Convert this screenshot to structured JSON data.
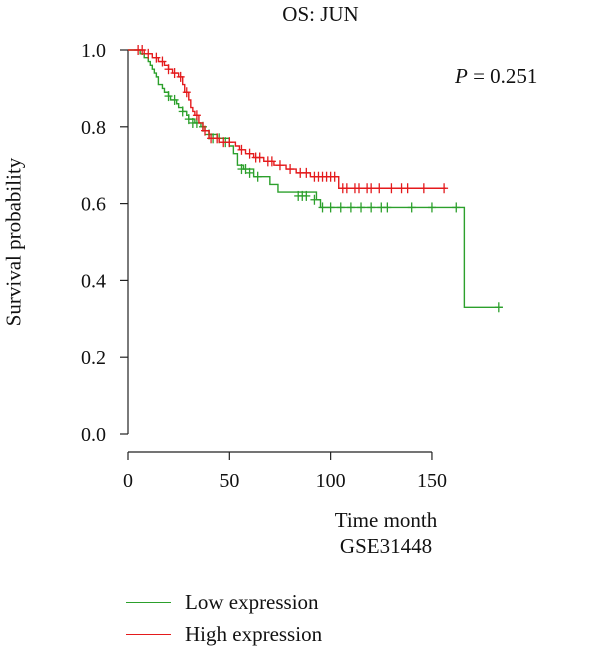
{
  "chart_data": {
    "type": "line",
    "title": "OS: JUN",
    "xlabel": "Time month",
    "subtitle": "GSE31448",
    "ylabel": "Survival probability",
    "annotation": {
      "label": "P",
      "text": " = 0.251"
    },
    "xlim": [
      0,
      190
    ],
    "ylim": [
      0,
      1.0
    ],
    "xticks": [
      0,
      50,
      100,
      150
    ],
    "yticks": [
      0.0,
      0.2,
      0.4,
      0.6,
      0.8,
      1.0
    ],
    "ytick_labels": [
      "0.0",
      "0.2",
      "0.4",
      "0.6",
      "0.8",
      "1.0"
    ],
    "legend_position": "bottom-left",
    "series": [
      {
        "name": "Low expression",
        "color": "#2ca02c",
        "steps": [
          [
            0,
            1.0
          ],
          [
            6,
            0.99
          ],
          [
            8,
            0.98
          ],
          [
            10,
            0.97
          ],
          [
            11,
            0.96
          ],
          [
            12,
            0.95
          ],
          [
            13,
            0.94
          ],
          [
            14,
            0.93
          ],
          [
            15,
            0.91
          ],
          [
            17,
            0.9
          ],
          [
            18,
            0.89
          ],
          [
            20,
            0.88
          ],
          [
            21,
            0.87
          ],
          [
            24,
            0.86
          ],
          [
            25,
            0.85
          ],
          [
            27,
            0.84
          ],
          [
            29,
            0.83
          ],
          [
            30,
            0.82
          ],
          [
            33,
            0.81
          ],
          [
            36,
            0.8
          ],
          [
            38,
            0.79
          ],
          [
            40,
            0.78
          ],
          [
            44,
            0.77
          ],
          [
            50,
            0.75
          ],
          [
            52,
            0.73
          ],
          [
            54,
            0.7
          ],
          [
            57,
            0.69
          ],
          [
            62,
            0.67
          ],
          [
            70,
            0.65
          ],
          [
            74,
            0.63
          ],
          [
            93,
            0.61
          ],
          [
            95,
            0.59
          ],
          [
            166,
            0.33
          ],
          [
            185,
            0.33
          ]
        ],
        "censored": [
          [
            20,
            0.88
          ],
          [
            23,
            0.87
          ],
          [
            27,
            0.84
          ],
          [
            30,
            0.82
          ],
          [
            32,
            0.81
          ],
          [
            34,
            0.81
          ],
          [
            37,
            0.8
          ],
          [
            40,
            0.78
          ],
          [
            42,
            0.77
          ],
          [
            45,
            0.77
          ],
          [
            48,
            0.76
          ],
          [
            56,
            0.69
          ],
          [
            58,
            0.69
          ],
          [
            60,
            0.68
          ],
          [
            64,
            0.67
          ],
          [
            84,
            0.62
          ],
          [
            86,
            0.62
          ],
          [
            88,
            0.62
          ],
          [
            92,
            0.61
          ],
          [
            96,
            0.59
          ],
          [
            100,
            0.59
          ],
          [
            105,
            0.59
          ],
          [
            110,
            0.59
          ],
          [
            115,
            0.59
          ],
          [
            120,
            0.59
          ],
          [
            125,
            0.59
          ],
          [
            128,
            0.59
          ],
          [
            140,
            0.59
          ],
          [
            150,
            0.59
          ],
          [
            162,
            0.59
          ],
          [
            183,
            0.33
          ]
        ]
      },
      {
        "name": "High expression",
        "color": "#e41a1c",
        "steps": [
          [
            0,
            1.0
          ],
          [
            8,
            0.99
          ],
          [
            12,
            0.98
          ],
          [
            15,
            0.97
          ],
          [
            18,
            0.96
          ],
          [
            20,
            0.95
          ],
          [
            22,
            0.94
          ],
          [
            25,
            0.93
          ],
          [
            27,
            0.91
          ],
          [
            28,
            0.89
          ],
          [
            30,
            0.87
          ],
          [
            31,
            0.85
          ],
          [
            32,
            0.84
          ],
          [
            33,
            0.83
          ],
          [
            35,
            0.81
          ],
          [
            37,
            0.79
          ],
          [
            40,
            0.77
          ],
          [
            45,
            0.76
          ],
          [
            53,
            0.75
          ],
          [
            55,
            0.74
          ],
          [
            58,
            0.73
          ],
          [
            62,
            0.72
          ],
          [
            67,
            0.71
          ],
          [
            72,
            0.7
          ],
          [
            78,
            0.69
          ],
          [
            83,
            0.68
          ],
          [
            90,
            0.67
          ],
          [
            104,
            0.64
          ],
          [
            157,
            0.64
          ]
        ],
        "censored": [
          [
            5,
            1.0
          ],
          [
            7,
            1.0
          ],
          [
            10,
            0.99
          ],
          [
            14,
            0.98
          ],
          [
            17,
            0.97
          ],
          [
            20,
            0.95
          ],
          [
            23,
            0.94
          ],
          [
            26,
            0.93
          ],
          [
            29,
            0.89
          ],
          [
            34,
            0.83
          ],
          [
            38,
            0.79
          ],
          [
            41,
            0.77
          ],
          [
            44,
            0.77
          ],
          [
            47,
            0.76
          ],
          [
            50,
            0.76
          ],
          [
            56,
            0.74
          ],
          [
            60,
            0.73
          ],
          [
            63,
            0.72
          ],
          [
            65,
            0.72
          ],
          [
            69,
            0.71
          ],
          [
            71,
            0.71
          ],
          [
            75,
            0.7
          ],
          [
            80,
            0.69
          ],
          [
            85,
            0.68
          ],
          [
            88,
            0.68
          ],
          [
            92,
            0.67
          ],
          [
            94,
            0.67
          ],
          [
            96,
            0.67
          ],
          [
            98,
            0.67
          ],
          [
            100,
            0.67
          ],
          [
            102,
            0.67
          ],
          [
            106,
            0.64
          ],
          [
            108,
            0.64
          ],
          [
            112,
            0.64
          ],
          [
            114,
            0.64
          ],
          [
            118,
            0.64
          ],
          [
            120,
            0.64
          ],
          [
            124,
            0.64
          ],
          [
            130,
            0.64
          ],
          [
            135,
            0.64
          ],
          [
            138,
            0.64
          ],
          [
            146,
            0.64
          ],
          [
            156,
            0.64
          ]
        ]
      }
    ]
  }
}
